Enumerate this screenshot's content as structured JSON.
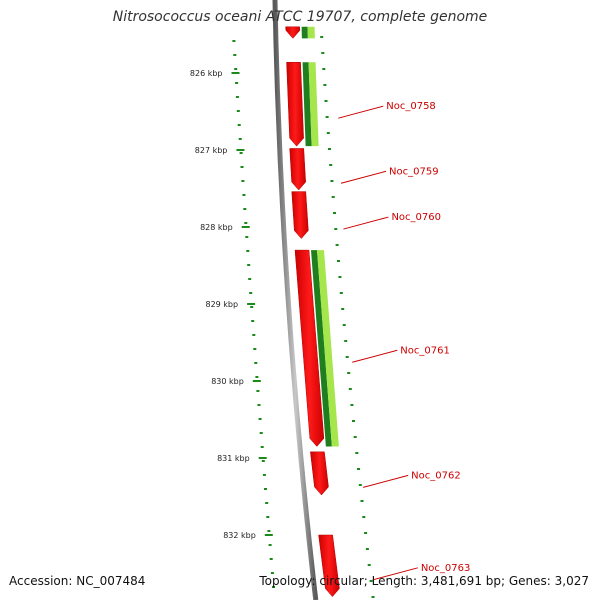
{
  "title": "Nitrosococcus oceani ATCC 19707, complete genome",
  "footer": {
    "accession": "Accession: NC_007484",
    "summary": "Topology: circular; Length: 3,481,691 bp; Genes: 3,027"
  },
  "colors": {
    "backbone": "#8a8a8a",
    "gene_red": "#ff1a1a",
    "gene_green_dark": "#1f7f1f",
    "gene_green_light": "#a6e64d",
    "tick_green": "#1a8a1a",
    "label_red": "#cc0000"
  },
  "ticks": [
    {
      "label": "826 kbp",
      "kb": 826
    },
    {
      "label": "827 kbp",
      "kb": 827
    },
    {
      "label": "828 kbp",
      "kb": 828
    },
    {
      "label": "829 kbp",
      "kb": 829
    },
    {
      "label": "830 kbp",
      "kb": 830
    },
    {
      "label": "831 kbp",
      "kb": 831
    },
    {
      "label": "832 kbp",
      "kb": 832
    }
  ],
  "genes": [
    {
      "label": "",
      "start_kb": 825.4,
      "end_kb": 825.55,
      "strand": "red"
    },
    {
      "label": "Noc_0758",
      "start_kb": 825.86,
      "end_kb": 826.95,
      "strand": "red"
    },
    {
      "label": "Noc_0759",
      "start_kb": 826.98,
      "end_kb": 827.52,
      "strand": "red"
    },
    {
      "label": "Noc_0760",
      "start_kb": 827.54,
      "end_kb": 828.15,
      "strand": "red"
    },
    {
      "label": "Noc_0761",
      "start_kb": 828.3,
      "end_kb": 830.85,
      "strand": "red"
    },
    {
      "label": "Noc_0762",
      "start_kb": 830.92,
      "end_kb": 831.48,
      "strand": "red"
    },
    {
      "label": "Noc_0763",
      "start_kb": 832.0,
      "end_kb": 832.8,
      "strand": "red"
    }
  ],
  "green_features": [
    {
      "start_kb": 825.4,
      "end_kb": 825.55
    },
    {
      "start_kb": 825.86,
      "end_kb": 826.95
    },
    {
      "start_kb": 828.3,
      "end_kb": 830.85
    }
  ]
}
